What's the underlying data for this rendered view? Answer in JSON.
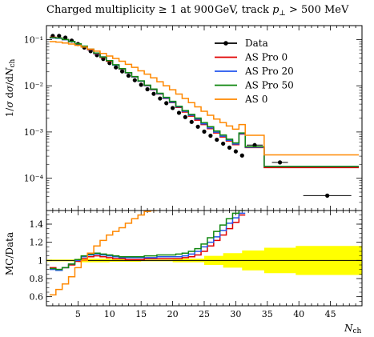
{
  "chart_data": [
    {
      "type": "line",
      "title": "Charged multiplicity ≥ 1 at 900 GeV, track p⊥ > 500 MeV",
      "ylabel": "1/σ dσ/dN_ch",
      "xlabel": "N_ch",
      "y_scale": "log",
      "xlim": [
        0,
        50
      ],
      "ylim": [
        2e-05,
        0.2
      ],
      "y_ticks": [
        "10⁻¹",
        "10⁻²",
        "10⁻³",
        "10⁻⁴"
      ],
      "legend_position": "top-right",
      "grid": false,
      "series": [
        {
          "name": "Data",
          "style": "points",
          "color": "#000000",
          "x": [
            1,
            2,
            3,
            4,
            5,
            6,
            7,
            8,
            9,
            10,
            11,
            12,
            13,
            14,
            15,
            16,
            17,
            18,
            19,
            20,
            21,
            22,
            23,
            24,
            25,
            26,
            27,
            28,
            29,
            30,
            31,
            33,
            37,
            44.5
          ],
          "y": [
            0.12,
            0.12,
            0.11,
            0.095,
            0.08,
            0.067,
            0.056,
            0.046,
            0.038,
            0.031,
            0.025,
            0.0205,
            0.0165,
            0.0132,
            0.0105,
            0.0084,
            0.0067,
            0.0053,
            0.0042,
            0.0033,
            0.0026,
            0.0021,
            0.00165,
            0.0013,
            0.00102,
            0.00083,
            0.00068,
            0.00056,
            0.00046,
            0.00038,
            0.00031,
            0.00052,
            0.00022,
            4.2e-05
          ]
        },
        {
          "name": "AS Pro 0",
          "style": "step",
          "color": "#e00000",
          "edges": [
            0.5,
            1.5,
            2.5,
            3.5,
            4.5,
            5.5,
            6.5,
            7.5,
            8.5,
            9.5,
            10.5,
            11.5,
            12.5,
            13.5,
            14.5,
            15.5,
            16.5,
            17.5,
            18.5,
            19.5,
            20.5,
            21.5,
            22.5,
            23.5,
            24.5,
            25.5,
            26.5,
            27.5,
            28.5,
            29.5,
            30.5,
            31.5,
            34.5,
            39.5,
            49.5
          ],
          "y": [
            0.112,
            0.108,
            0.1,
            0.09,
            0.08,
            0.07,
            0.06,
            0.049,
            0.041,
            0.034,
            0.028,
            0.023,
            0.019,
            0.0155,
            0.0125,
            0.01,
            0.0082,
            0.0066,
            0.0053,
            0.0043,
            0.0034,
            0.0027,
            0.0022,
            0.0018,
            0.00145,
            0.00118,
            0.00095,
            0.00078,
            0.00064,
            0.00053,
            0.0009,
            0.00046,
            0.00017,
            0.00017
          ]
        },
        {
          "name": "AS Pro 20",
          "style": "step",
          "color": "#2255ee",
          "edges": [
            0.5,
            1.5,
            2.5,
            3.5,
            4.5,
            5.5,
            6.5,
            7.5,
            8.5,
            9.5,
            10.5,
            11.5,
            12.5,
            13.5,
            14.5,
            15.5,
            16.5,
            17.5,
            18.5,
            19.5,
            20.5,
            21.5,
            22.5,
            23.5,
            24.5,
            25.5,
            26.5,
            27.5,
            28.5,
            29.5,
            30.5,
            31.5,
            34.5,
            39.5,
            49.5
          ],
          "y": [
            0.108,
            0.106,
            0.099,
            0.09,
            0.08,
            0.071,
            0.061,
            0.05,
            0.042,
            0.035,
            0.028,
            0.0232,
            0.019,
            0.0156,
            0.0126,
            0.0101,
            0.0083,
            0.0067,
            0.0054,
            0.0044,
            0.0035,
            0.0028,
            0.0023,
            0.0019,
            0.0015,
            0.00122,
            0.00099,
            0.00081,
            0.00066,
            0.00055,
            0.00092,
            0.00047,
            0.00018,
            0.00018
          ]
        },
        {
          "name": "AS Pro 50",
          "style": "step",
          "color": "#118811",
          "edges": [
            0.5,
            1.5,
            2.5,
            3.5,
            4.5,
            5.5,
            6.5,
            7.5,
            8.5,
            9.5,
            10.5,
            11.5,
            12.5,
            13.5,
            14.5,
            15.5,
            16.5,
            17.5,
            18.5,
            19.5,
            20.5,
            21.5,
            22.5,
            23.5,
            24.5,
            25.5,
            26.5,
            27.5,
            28.5,
            29.5,
            30.5,
            31.5,
            34.5,
            39.5,
            49.5
          ],
          "y": [
            0.11,
            0.108,
            0.1,
            0.091,
            0.081,
            0.072,
            0.062,
            0.051,
            0.042,
            0.035,
            0.0285,
            0.0235,
            0.0192,
            0.0158,
            0.0128,
            0.0103,
            0.0085,
            0.0069,
            0.0056,
            0.0046,
            0.0036,
            0.0029,
            0.0024,
            0.002,
            0.0016,
            0.0013,
            0.00105,
            0.00086,
            0.0007,
            0.00058,
            0.00095,
            0.00048,
            0.00018,
            0.00018
          ]
        },
        {
          "name": "AS 0",
          "style": "step",
          "color": "#ff8800",
          "edges": [
            0.5,
            1.5,
            2.5,
            3.5,
            4.5,
            5.5,
            6.5,
            7.5,
            8.5,
            9.5,
            10.5,
            11.5,
            12.5,
            13.5,
            14.5,
            15.5,
            16.5,
            17.5,
            18.5,
            19.5,
            20.5,
            21.5,
            22.5,
            23.5,
            24.5,
            25.5,
            26.5,
            27.5,
            28.5,
            29.5,
            30.5,
            31.5,
            34.5,
            39.5,
            49.5
          ],
          "y": [
            0.09,
            0.088,
            0.084,
            0.08,
            0.075,
            0.069,
            0.062,
            0.056,
            0.05,
            0.044,
            0.039,
            0.034,
            0.029,
            0.025,
            0.021,
            0.0178,
            0.0148,
            0.0122,
            0.01,
            0.0082,
            0.0066,
            0.0053,
            0.0043,
            0.0035,
            0.0028,
            0.0023,
            0.0019,
            0.0016,
            0.00135,
            0.00115,
            0.00145,
            0.00085,
            0.00032,
            0.00032
          ]
        }
      ]
    },
    {
      "type": "line",
      "ylabel": "MC/Data",
      "xlabel": "N_ch",
      "xlim": [
        0,
        50
      ],
      "ylim": [
        0.5,
        1.55
      ],
      "x_ticks": [
        "5",
        "10",
        "15",
        "20",
        "25",
        "30",
        "35",
        "40",
        "45"
      ],
      "y_ticks": [
        "0.6",
        "0.8",
        "1",
        "1.2",
        "1.4"
      ],
      "grid": false,
      "uncertainty_band": {
        "color": "#ffff00",
        "edges": [
          0,
          5,
          10,
          15,
          20,
          25,
          28,
          31,
          34.5,
          39.5,
          50
        ],
        "low": [
          0.99,
          0.98,
          0.985,
          0.99,
          0.98,
          0.95,
          0.92,
          0.89,
          0.86,
          0.84,
          0.82
        ],
        "high": [
          1.01,
          1.02,
          1.015,
          1.01,
          1.02,
          1.05,
          1.08,
          1.11,
          1.14,
          1.16,
          1.17
        ]
      },
      "series": [
        {
          "name": "AS Pro 0",
          "color": "#e00000",
          "edges": [
            0.5,
            1.5,
            2.5,
            3.5,
            4.5,
            5.5,
            6.5,
            7.5,
            8.5,
            9.5,
            10.5,
            11.5,
            12.5,
            13.5,
            14.5,
            15.5,
            16.5,
            17.5,
            18.5,
            19.5,
            20.5,
            21.5,
            22.5,
            23.5,
            24.5,
            25.5,
            26.5,
            27.5,
            28.5,
            29.5,
            30.5,
            31.5
          ],
          "y": [
            0.92,
            0.9,
            0.92,
            0.95,
            0.99,
            1.02,
            1.04,
            1.05,
            1.04,
            1.03,
            1.02,
            1.02,
            1.01,
            1.01,
            1.01,
            1.02,
            1.02,
            1.02,
            1.02,
            1.02,
            1.02,
            1.03,
            1.04,
            1.06,
            1.1,
            1.16,
            1.22,
            1.28,
            1.35,
            1.42,
            1.5
          ]
        },
        {
          "name": "AS Pro 20",
          "color": "#2255ee",
          "edges": [
            0.5,
            1.5,
            2.5,
            3.5,
            4.5,
            5.5,
            6.5,
            7.5,
            8.5,
            9.5,
            10.5,
            11.5,
            12.5,
            13.5,
            14.5,
            15.5,
            16.5,
            17.5,
            18.5,
            19.5,
            20.5,
            21.5,
            22.5,
            23.5,
            24.5,
            25.5,
            26.5,
            27.5,
            28.5,
            29.5,
            30.5,
            31.5
          ],
          "y": [
            0.9,
            0.89,
            0.92,
            0.96,
            1.0,
            1.04,
            1.06,
            1.07,
            1.06,
            1.05,
            1.04,
            1.03,
            1.03,
            1.03,
            1.03,
            1.03,
            1.03,
            1.04,
            1.04,
            1.04,
            1.04,
            1.05,
            1.07,
            1.1,
            1.15,
            1.2,
            1.26,
            1.33,
            1.41,
            1.47,
            1.52
          ]
        },
        {
          "name": "AS Pro 50",
          "color": "#118811",
          "edges": [
            0.5,
            1.5,
            2.5,
            3.5,
            4.5,
            5.5,
            6.5,
            7.5,
            8.5,
            9.5,
            10.5,
            11.5,
            12.5,
            13.5,
            14.5,
            15.5,
            16.5,
            17.5,
            18.5,
            19.5,
            20.5,
            21.5,
            22.5,
            23.5,
            24.5,
            25.5,
            26.5,
            27.5,
            28.5,
            29.5,
            30.5,
            31.5
          ],
          "y": [
            0.91,
            0.9,
            0.92,
            0.96,
            1.01,
            1.05,
            1.07,
            1.08,
            1.07,
            1.06,
            1.05,
            1.04,
            1.04,
            1.04,
            1.04,
            1.05,
            1.05,
            1.06,
            1.06,
            1.06,
            1.07,
            1.08,
            1.1,
            1.13,
            1.18,
            1.25,
            1.32,
            1.39,
            1.46,
            1.52,
            1.55
          ]
        },
        {
          "name": "AS 0",
          "color": "#ff8800",
          "edges": [
            0.5,
            1.5,
            2.5,
            3.5,
            4.5,
            5.5,
            6.5,
            7.5,
            8.5,
            9.5,
            10.5,
            11.5,
            12.5,
            13.5,
            14.5,
            15.5,
            16.5,
            17.5
          ],
          "y": [
            0.62,
            0.68,
            0.74,
            0.82,
            0.92,
            1.0,
            1.08,
            1.16,
            1.22,
            1.28,
            1.32,
            1.36,
            1.41,
            1.46,
            1.5,
            1.54,
            1.6
          ]
        }
      ]
    }
  ]
}
